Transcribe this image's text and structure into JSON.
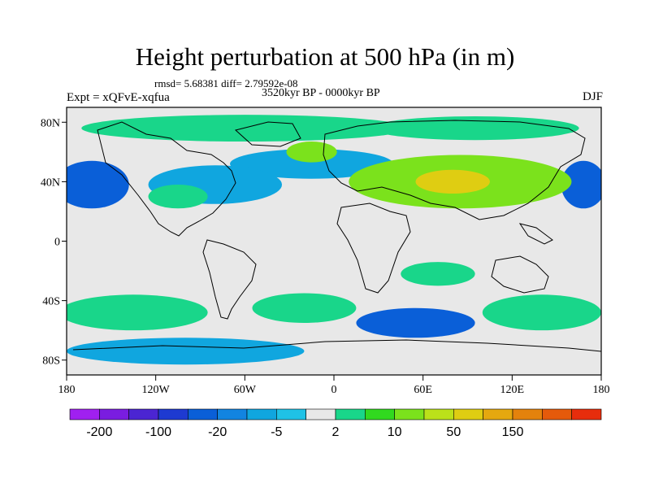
{
  "figure": {
    "title": "Height perturbation at 500 hPa (in m)",
    "stats": "rmsd= 5.68381 diff= 2.79592e-08",
    "experiment": "Expt = xQFvE-xqfua",
    "period": "3520kyr BP - 0000kyr BP",
    "season": "DJF"
  },
  "axes": {
    "lon_ticks": [
      "180",
      "120W",
      "60W",
      "0",
      "60E",
      "120E",
      "180"
    ],
    "lat_ticks": [
      "80N",
      "40N",
      "0",
      "40S",
      "80S"
    ]
  },
  "colorbar": {
    "colors": [
      "#a020f0",
      "#7a1de0",
      "#4b25d2",
      "#1e3ad1",
      "#0a5fd8",
      "#1284e0",
      "#10a6df",
      "#1fc2e6",
      "#e8e8e8",
      "#19d68a",
      "#31d91f",
      "#7be21c",
      "#bbe11a",
      "#dfcd12",
      "#e5a80f",
      "#e4820c",
      "#e55a0b",
      "#e72d0c"
    ],
    "labels": [
      "-200",
      "-100",
      "-20",
      "-5",
      "2",
      "10",
      "50",
      "150"
    ]
  },
  "map_data": {
    "background_color": "#e8e8e8",
    "regions": [
      {
        "name": "arctic-green-band",
        "category": "2-5",
        "center": [
          -60,
          76
        ],
        "radius": [
          110,
          9
        ]
      },
      {
        "name": "siberia-green-band",
        "category": "2-5",
        "center": [
          95,
          76
        ],
        "radius": [
          70,
          8
        ]
      },
      {
        "name": "north-atlantic-cyan",
        "category": "-5-0",
        "center": [
          -15,
          52
        ],
        "radius": [
          55,
          10
        ]
      },
      {
        "name": "north-atlantic-yellow-green",
        "category": "5-10",
        "center": [
          -15,
          60
        ],
        "radius": [
          17,
          7
        ]
      },
      {
        "name": "north-pacific-blue-west",
        "category": "-20-10",
        "center": [
          -163,
          38
        ],
        "radius": [
          25,
          16
        ]
      },
      {
        "name": "north-pacific-blue-east",
        "category": "-20-10",
        "center": [
          168,
          38
        ],
        "radius": [
          15,
          16
        ]
      },
      {
        "name": "north-america-cyan",
        "category": "-5-0",
        "center": [
          -80,
          38
        ],
        "radius": [
          45,
          13
        ]
      },
      {
        "name": "pacific-east-green",
        "category": "2-5",
        "center": [
          -105,
          30
        ],
        "radius": [
          20,
          8
        ]
      },
      {
        "name": "eurasia-green-high",
        "category": "5-10",
        "center": [
          85,
          40
        ],
        "radius": [
          75,
          18
        ]
      },
      {
        "name": "asia-orange-core",
        "category": "20-50",
        "center": [
          80,
          40
        ],
        "radius": [
          25,
          8
        ]
      },
      {
        "name": "southern-ocean-blue-indian",
        "category": "-20-10",
        "center": [
          55,
          -55
        ],
        "radius": [
          40,
          10
        ]
      },
      {
        "name": "south-pacific-green",
        "category": "2-5",
        "center": [
          -135,
          -48
        ],
        "radius": [
          50,
          12
        ]
      },
      {
        "name": "south-atlantic-green",
        "category": "2-5",
        "center": [
          -20,
          -45
        ],
        "radius": [
          35,
          10
        ]
      },
      {
        "name": "antarctic-cyan-ring",
        "category": "-5-0",
        "center": [
          -100,
          -74
        ],
        "radius": [
          80,
          9
        ]
      },
      {
        "name": "australia-green-east",
        "category": "2-5",
        "center": [
          140,
          -48
        ],
        "radius": [
          40,
          12
        ]
      },
      {
        "name": "tropical-indian-green",
        "category": "2-5",
        "center": [
          70,
          -22
        ],
        "radius": [
          25,
          8
        ]
      }
    ]
  }
}
